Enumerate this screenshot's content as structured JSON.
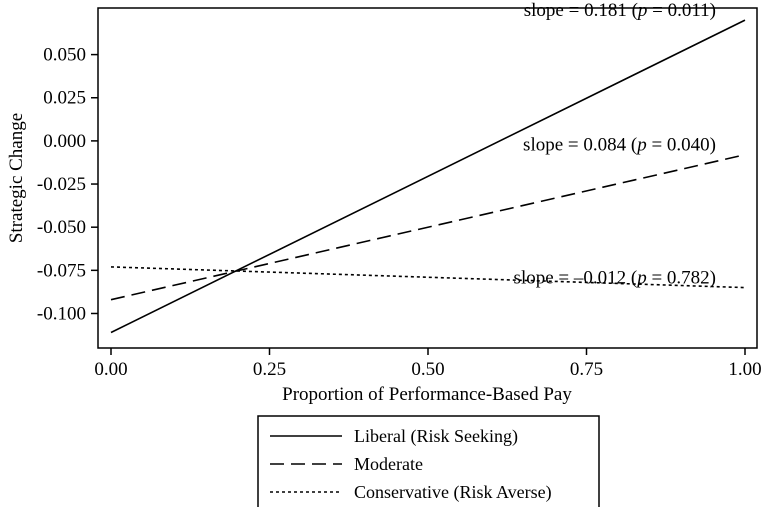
{
  "chart_data": {
    "type": "line",
    "xlabel": "Proportion of Performance-Based Pay",
    "ylabel": "Strategic Change",
    "xlim": [
      0,
      1
    ],
    "ylim": [
      -0.12,
      0.077
    ],
    "x_ticks": [
      0,
      0.25,
      0.5,
      0.75,
      1.0
    ],
    "x_tick_labels": [
      "0.00",
      "0.25",
      "0.50",
      "0.75",
      "1.00"
    ],
    "y_ticks": [
      -0.1,
      -0.075,
      -0.05,
      -0.025,
      0,
      0.025,
      0.05
    ],
    "y_tick_labels": [
      "-0.100",
      "-0.075",
      "-0.050",
      "-0.025",
      "0.000",
      "0.025",
      "0.050"
    ],
    "grid": false,
    "legend_position": "bottom",
    "series": [
      {
        "name": "Liberal (Risk Seeking)",
        "style": "solid",
        "x": [
          0,
          1
        ],
        "y": [
          -0.111,
          0.07
        ],
        "annotation": {
          "prefix": "slope = 0.181 (",
          "p_symbol": "p",
          "suffix": " = 0.011)"
        }
      },
      {
        "name": "Moderate",
        "style": "dashed",
        "x": [
          0,
          1
        ],
        "y": [
          -0.092,
          -0.008
        ],
        "annotation": {
          "prefix": "slope = 0.084 (",
          "p_symbol": "p",
          "suffix": " = 0.040)"
        }
      },
      {
        "name": "Conservative (Risk Averse)",
        "style": "dotted",
        "x": [
          0,
          1
        ],
        "y": [
          -0.073,
          -0.085
        ],
        "annotation": {
          "prefix": "slope = –0.012 (",
          "p_symbol": "p",
          "suffix": " = 0.782)"
        }
      }
    ]
  }
}
